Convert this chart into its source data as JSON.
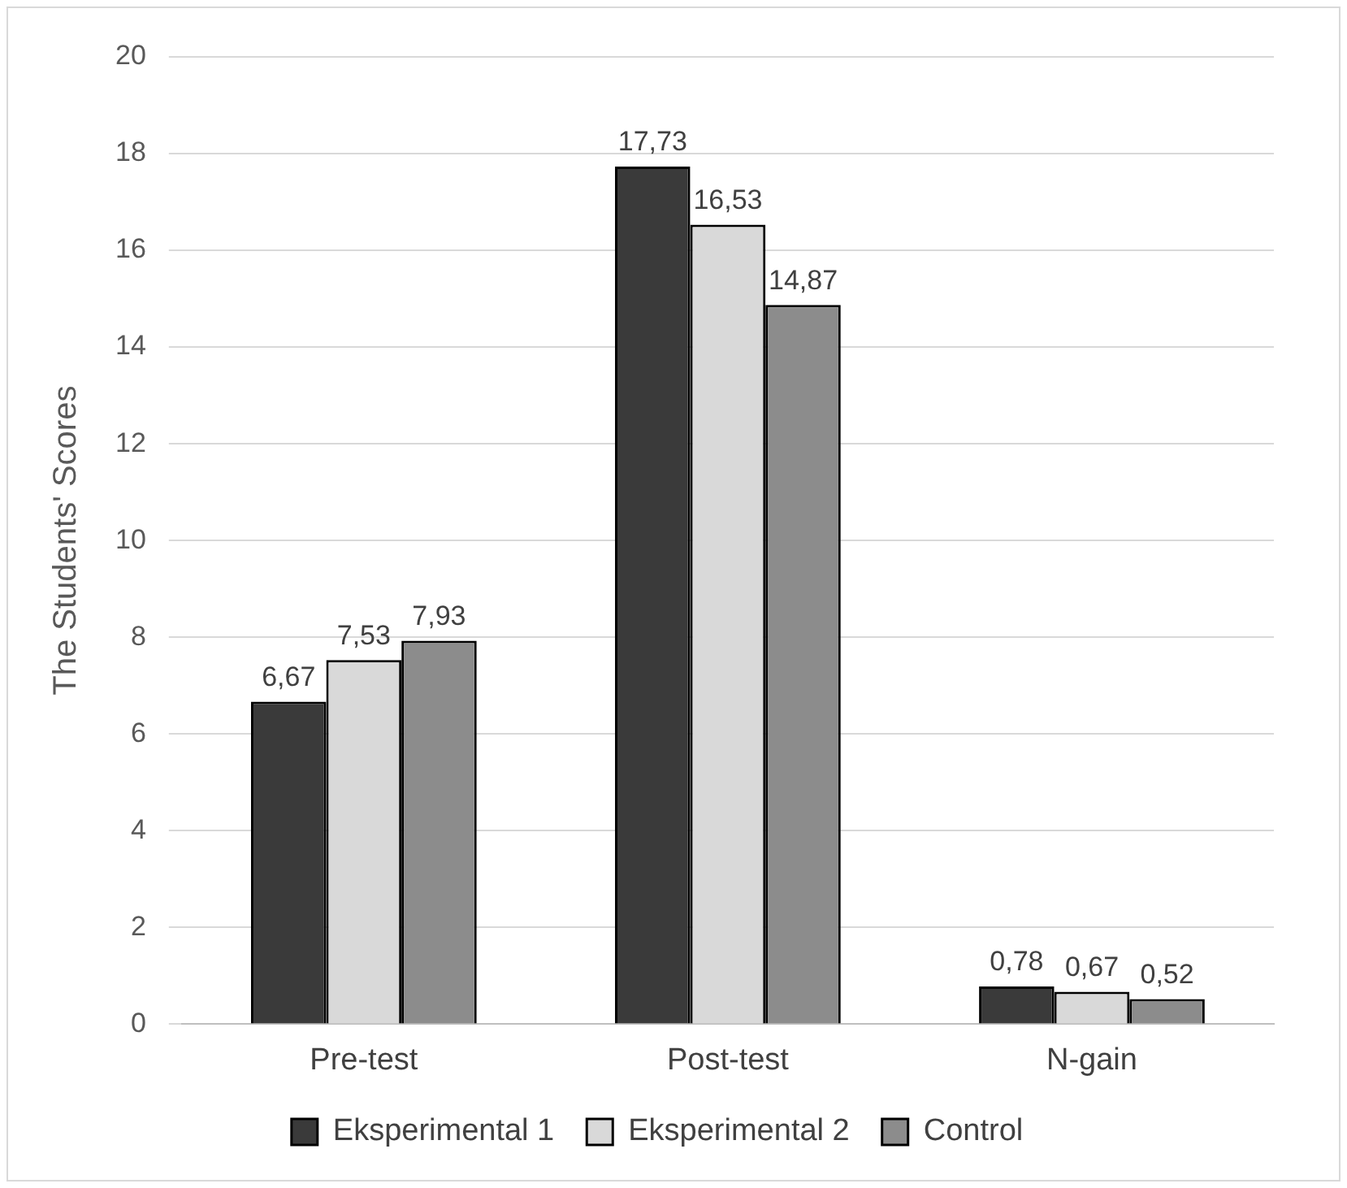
{
  "chart_data": {
    "type": "bar",
    "ylabel": "The Students' Scores",
    "categories": [
      "Pre-test",
      "Post-test",
      "N-gain"
    ],
    "series": [
      {
        "name": "Eksperimental 1",
        "color": "#3a3a3a",
        "values": [
          6.67,
          17.73,
          0.78
        ],
        "value_labels": [
          "6,67",
          "17,73",
          "0,78"
        ]
      },
      {
        "name": "Eksperimental 2",
        "color": "#d9d9d9",
        "values": [
          7.53,
          16.53,
          0.67
        ],
        "value_labels": [
          "7,53",
          "16,53",
          "0,67"
        ]
      },
      {
        "name": "Control",
        "color": "#8c8c8c",
        "values": [
          7.93,
          14.87,
          0.52
        ],
        "value_labels": [
          "7,93",
          "14,87",
          "0,52"
        ]
      }
    ],
    "ylim": [
      0,
      20
    ],
    "yticks": [
      0,
      2,
      4,
      6,
      8,
      10,
      12,
      14,
      16,
      18,
      20
    ],
    "grid": "y",
    "legend": "bottom"
  }
}
